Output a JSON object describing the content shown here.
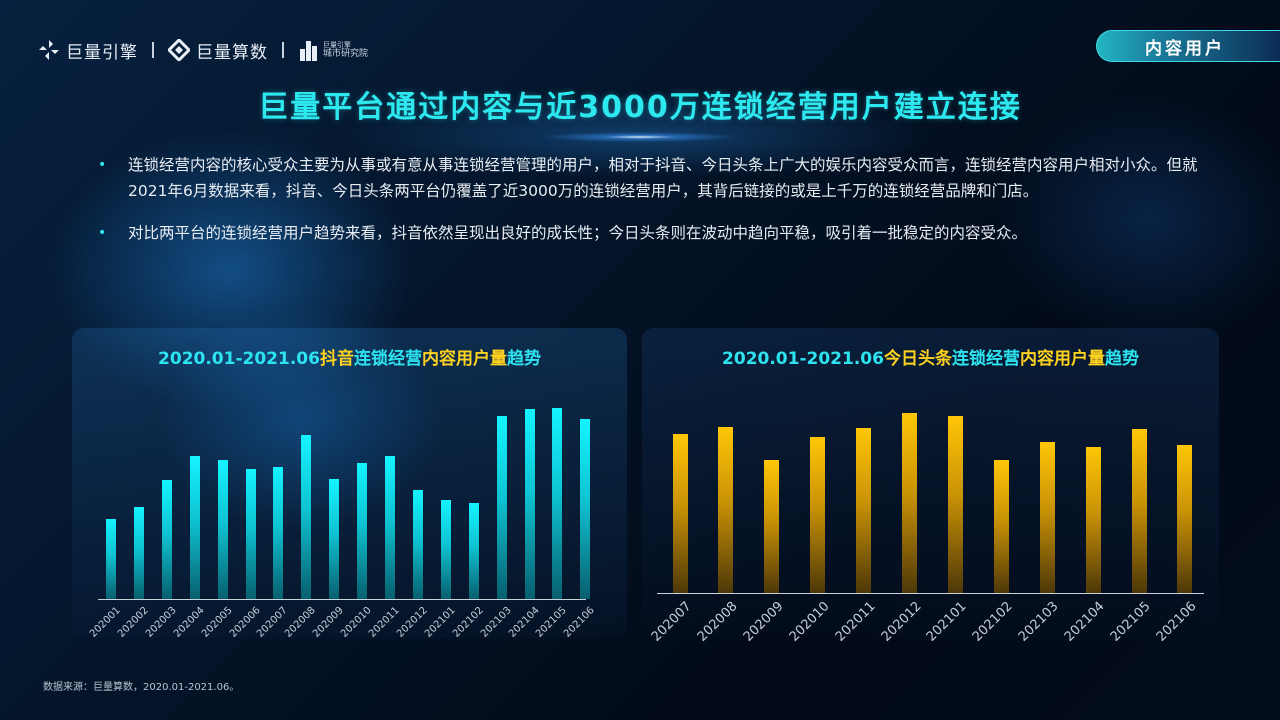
{
  "header": {
    "logos": [
      {
        "name": "巨量引擎",
        "icon": "juliang-engine-icon"
      },
      {
        "name": "巨量算数",
        "icon": "juliang-suanshu-icon"
      },
      {
        "name_top": "巨量引擎",
        "name_bottom": "城市研究院",
        "icon": "city-institute-icon"
      }
    ],
    "tag": "内容用户"
  },
  "title": "巨量平台通过内容与近3000万连锁经营用户建立连接",
  "bullets": [
    "连锁经营内容的核心受众主要为从事或有意从事连锁经营管理的用户，相对于抖音、今日头条上广大的娱乐内容受众而言，连锁经营内容用户相对小众。但就2021年6月数据来看，抖音、今日头条两平台仍覆盖了近3000万的连锁经营用户，其背后链接的或是上千万的连锁经营品牌和门店。",
    "对比两平台的连锁经营用户趋势来看，抖音依然呈现出良好的成长性；今日头条则在波动中趋向平稳，吸引着一批稳定的内容受众。"
  ],
  "charts": {
    "left": {
      "title_parts": [
        {
          "text": "2020.01-2021.06",
          "color": "cyan"
        },
        {
          "text": "抖音",
          "color": "gold"
        },
        {
          "text": "连锁经营",
          "color": "cyan"
        },
        {
          "text": "内容用户",
          "color": "gold"
        },
        {
          "text": "量",
          "color": "gold"
        },
        {
          "text": "趋势",
          "color": "cyan"
        }
      ]
    },
    "right": {
      "title_parts": [
        {
          "text": "2020.01-2021.06",
          "color": "cyan"
        },
        {
          "text": "今日头条",
          "color": "gold"
        },
        {
          "text": "连锁经营",
          "color": "cyan"
        },
        {
          "text": "内容用户",
          "color": "gold"
        },
        {
          "text": "量",
          "color": "gold"
        },
        {
          "text": "趋势",
          "color": "cyan"
        }
      ]
    }
  },
  "chart_data": [
    {
      "type": "bar",
      "title": "2020.01-2021.06抖音连锁经营内容用户量趋势",
      "xlabel": "",
      "ylabel": "",
      "grid": false,
      "legend": "none",
      "color": "#15f4ff",
      "categories": [
        "202001",
        "202002",
        "202003",
        "202004",
        "202005",
        "202006",
        "202007",
        "202008",
        "202009",
        "202010",
        "202011",
        "202012",
        "202101",
        "202102",
        "202103",
        "202104",
        "202105",
        "202106"
      ],
      "values": [
        80,
        92,
        119,
        143,
        139,
        130,
        132,
        164,
        120,
        136,
        143,
        109,
        99,
        96,
        183,
        190,
        191,
        180
      ],
      "ylim": [
        0,
        200
      ],
      "note": "relative bar heights (no y-axis shown)"
    },
    {
      "type": "bar",
      "title": "2020.01-2021.06今日头条连锁经营内容用户量趋势",
      "xlabel": "",
      "ylabel": "",
      "grid": false,
      "legend": "none",
      "color": "#ffc607",
      "categories": [
        "202007",
        "202008",
        "202009",
        "202010",
        "202011",
        "202012",
        "202101",
        "202102",
        "202103",
        "202104",
        "202105",
        "202106"
      ],
      "values": [
        159,
        166,
        133,
        156,
        165,
        180,
        177,
        133,
        151,
        146,
        164,
        148
      ],
      "ylim": [
        0,
        200
      ],
      "note": "relative bar heights (no y-axis shown)"
    }
  ],
  "footer": "数据来源：巨量算数，2020.01-2021.06。"
}
